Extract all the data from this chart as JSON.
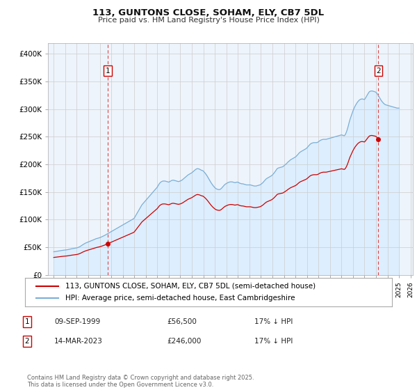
{
  "title": "113, GUNTONS CLOSE, SOHAM, ELY, CB7 5DL",
  "subtitle": "Price paid vs. HM Land Registry's House Price Index (HPI)",
  "legend_line1": "113, GUNTONS CLOSE, SOHAM, ELY, CB7 5DL (semi-detached house)",
  "legend_line2": "HPI: Average price, semi-detached house, East Cambridgeshire",
  "footer": "Contains HM Land Registry data © Crown copyright and database right 2025.\nThis data is licensed under the Open Government Licence v3.0.",
  "annotation1_label": "1",
  "annotation1_date": "09-SEP-1999",
  "annotation1_price": "£56,500",
  "annotation1_hpi": "17% ↓ HPI",
  "annotation2_label": "2",
  "annotation2_date": "14-MAR-2023",
  "annotation2_price": "£246,000",
  "annotation2_hpi": "17% ↓ HPI",
  "price_color": "#cc0000",
  "hpi_color": "#7aaed6",
  "hpi_fill_color": "#ddeeff",
  "vline_color": "#dd4444",
  "grid_color": "#cccccc",
  "background_color": "#ffffff",
  "chart_bg_color": "#eef4fb",
  "ylim_min": 0,
  "ylim_max": 420000,
  "ylabel_ticks": [
    0,
    50000,
    100000,
    150000,
    200000,
    250000,
    300000,
    350000,
    400000
  ],
  "ylabel_labels": [
    "£0",
    "£50K",
    "£100K",
    "£150K",
    "£200K",
    "£250K",
    "£300K",
    "£350K",
    "£400K"
  ],
  "hpi_data": {
    "dates": [
      1995.0,
      1995.083,
      1995.167,
      1995.25,
      1995.333,
      1995.417,
      1995.5,
      1995.583,
      1995.667,
      1995.75,
      1995.833,
      1995.917,
      1996.0,
      1996.083,
      1996.167,
      1996.25,
      1996.333,
      1996.417,
      1996.5,
      1996.583,
      1996.667,
      1996.75,
      1996.833,
      1996.917,
      1997.0,
      1997.083,
      1997.167,
      1997.25,
      1997.333,
      1997.417,
      1997.5,
      1997.583,
      1997.667,
      1997.75,
      1997.833,
      1997.917,
      1998.0,
      1998.083,
      1998.167,
      1998.25,
      1998.333,
      1998.417,
      1998.5,
      1998.583,
      1998.667,
      1998.75,
      1998.833,
      1998.917,
      1999.0,
      1999.083,
      1999.167,
      1999.25,
      1999.333,
      1999.417,
      1999.5,
      1999.583,
      1999.667,
      1999.75,
      1999.833,
      1999.917,
      2000.0,
      2000.083,
      2000.167,
      2000.25,
      2000.333,
      2000.417,
      2000.5,
      2000.583,
      2000.667,
      2000.75,
      2000.833,
      2000.917,
      2001.0,
      2001.083,
      2001.167,
      2001.25,
      2001.333,
      2001.417,
      2001.5,
      2001.583,
      2001.667,
      2001.75,
      2001.833,
      2001.917,
      2002.0,
      2002.083,
      2002.167,
      2002.25,
      2002.333,
      2002.417,
      2002.5,
      2002.583,
      2002.667,
      2002.75,
      2002.833,
      2002.917,
      2003.0,
      2003.083,
      2003.167,
      2003.25,
      2003.333,
      2003.417,
      2003.5,
      2003.583,
      2003.667,
      2003.75,
      2003.833,
      2003.917,
      2004.0,
      2004.083,
      2004.167,
      2004.25,
      2004.333,
      2004.417,
      2004.5,
      2004.583,
      2004.667,
      2004.75,
      2004.833,
      2004.917,
      2005.0,
      2005.083,
      2005.167,
      2005.25,
      2005.333,
      2005.417,
      2005.5,
      2005.583,
      2005.667,
      2005.75,
      2005.833,
      2005.917,
      2006.0,
      2006.083,
      2006.167,
      2006.25,
      2006.333,
      2006.417,
      2006.5,
      2006.583,
      2006.667,
      2006.75,
      2006.833,
      2006.917,
      2007.0,
      2007.083,
      2007.167,
      2007.25,
      2007.333,
      2007.417,
      2007.5,
      2007.583,
      2007.667,
      2007.75,
      2007.833,
      2007.917,
      2008.0,
      2008.083,
      2008.167,
      2008.25,
      2008.333,
      2008.417,
      2008.5,
      2008.583,
      2008.667,
      2008.75,
      2008.833,
      2008.917,
      2009.0,
      2009.083,
      2009.167,
      2009.25,
      2009.333,
      2009.417,
      2009.5,
      2009.583,
      2009.667,
      2009.75,
      2009.833,
      2009.917,
      2010.0,
      2010.083,
      2010.167,
      2010.25,
      2010.333,
      2010.417,
      2010.5,
      2010.583,
      2010.667,
      2010.75,
      2010.833,
      2010.917,
      2011.0,
      2011.083,
      2011.167,
      2011.25,
      2011.333,
      2011.417,
      2011.5,
      2011.583,
      2011.667,
      2011.75,
      2011.833,
      2011.917,
      2012.0,
      2012.083,
      2012.167,
      2012.25,
      2012.333,
      2012.417,
      2012.5,
      2012.583,
      2012.667,
      2012.75,
      2012.833,
      2012.917,
      2013.0,
      2013.083,
      2013.167,
      2013.25,
      2013.333,
      2013.417,
      2013.5,
      2013.583,
      2013.667,
      2013.75,
      2013.833,
      2013.917,
      2014.0,
      2014.083,
      2014.167,
      2014.25,
      2014.333,
      2014.417,
      2014.5,
      2014.583,
      2014.667,
      2014.75,
      2014.833,
      2014.917,
      2015.0,
      2015.083,
      2015.167,
      2015.25,
      2015.333,
      2015.417,
      2015.5,
      2015.583,
      2015.667,
      2015.75,
      2015.833,
      2015.917,
      2016.0,
      2016.083,
      2016.167,
      2016.25,
      2016.333,
      2016.417,
      2016.5,
      2016.583,
      2016.667,
      2016.75,
      2016.833,
      2016.917,
      2017.0,
      2017.083,
      2017.167,
      2017.25,
      2017.333,
      2017.417,
      2017.5,
      2017.583,
      2017.667,
      2017.75,
      2017.833,
      2017.917,
      2018.0,
      2018.083,
      2018.167,
      2018.25,
      2018.333,
      2018.417,
      2018.5,
      2018.583,
      2018.667,
      2018.75,
      2018.833,
      2018.917,
      2019.0,
      2019.083,
      2019.167,
      2019.25,
      2019.333,
      2019.417,
      2019.5,
      2019.583,
      2019.667,
      2019.75,
      2019.833,
      2019.917,
      2020.0,
      2020.083,
      2020.167,
      2020.25,
      2020.333,
      2020.417,
      2020.5,
      2020.583,
      2020.667,
      2020.75,
      2020.833,
      2020.917,
      2021.0,
      2021.083,
      2021.167,
      2021.25,
      2021.333,
      2021.417,
      2021.5,
      2021.583,
      2021.667,
      2021.75,
      2021.833,
      2021.917,
      2022.0,
      2022.083,
      2022.167,
      2022.25,
      2022.333,
      2022.417,
      2022.5,
      2022.583,
      2022.667,
      2022.75,
      2022.833,
      2022.917,
      2023.0,
      2023.083,
      2023.167,
      2023.25,
      2023.333,
      2023.417,
      2023.5,
      2023.583,
      2023.667,
      2023.75,
      2023.833,
      2023.917,
      2024.0,
      2024.083,
      2024.167,
      2024.25,
      2024.333,
      2024.417,
      2024.5,
      2024.583,
      2024.667,
      2024.75,
      2024.833,
      2024.917,
      2025.0
    ],
    "values": [
      42000,
      42200,
      42500,
      42800,
      43100,
      43400,
      43700,
      44000,
      44300,
      44500,
      44700,
      44900,
      45100,
      45300,
      45600,
      46000,
      46400,
      46800,
      47200,
      47500,
      47800,
      48100,
      48400,
      48700,
      49000,
      49500,
      50200,
      51000,
      52000,
      53200,
      54500,
      55500,
      56500,
      57500,
      58300,
      59000,
      59700,
      60300,
      61000,
      61700,
      62500,
      63200,
      64000,
      64700,
      65500,
      66000,
      66500,
      67000,
      67500,
      68200,
      69000,
      69800,
      70600,
      71500,
      72500,
      73500,
      74500,
      75500,
      76500,
      77500,
      78500,
      79500,
      80500,
      81500,
      82500,
      83500,
      84500,
      85500,
      86500,
      87500,
      88500,
      89500,
      90500,
      91500,
      92500,
      93500,
      94500,
      95500,
      96500,
      97500,
      98500,
      99500,
      100500,
      101500,
      103000,
      106000,
      109000,
      112000,
      115000,
      118000,
      121000,
      124000,
      127000,
      129000,
      131000,
      133000,
      135000,
      137000,
      139000,
      141000,
      143000,
      145000,
      147000,
      149000,
      151000,
      153000,
      155000,
      157000,
      159000,
      162000,
      165000,
      167000,
      168500,
      169500,
      170000,
      170000,
      170000,
      169500,
      169000,
      168500,
      168000,
      169000,
      170000,
      171000,
      171500,
      171500,
      171000,
      170500,
      170000,
      169500,
      169000,
      169500,
      170000,
      171000,
      172000,
      173500,
      175000,
      176500,
      178000,
      179500,
      181000,
      182000,
      183000,
      184000,
      185000,
      186500,
      188000,
      189500,
      191000,
      192000,
      192500,
      192000,
      191500,
      190500,
      189500,
      189000,
      188000,
      186000,
      184000,
      181500,
      179000,
      176000,
      173000,
      170000,
      167000,
      164500,
      162000,
      160000,
      158000,
      156500,
      155500,
      155000,
      154500,
      154500,
      155500,
      157000,
      159000,
      161000,
      163000,
      164500,
      165500,
      166500,
      167500,
      168000,
      168500,
      168500,
      168500,
      168000,
      167500,
      167000,
      167500,
      168000,
      168000,
      167000,
      166000,
      165500,
      165000,
      165000,
      164500,
      164000,
      163500,
      163000,
      163000,
      163000,
      163000,
      163000,
      162500,
      162000,
      161500,
      161000,
      161000,
      161000,
      161500,
      162000,
      162500,
      163000,
      164000,
      165500,
      167000,
      169000,
      171000,
      173000,
      174500,
      175500,
      176500,
      177500,
      178500,
      179500,
      181000,
      183000,
      185000,
      187500,
      190000,
      192500,
      193500,
      194000,
      194500,
      195000,
      195500,
      196000,
      197500,
      199000,
      200500,
      202000,
      204000,
      205500,
      207000,
      208500,
      209500,
      210500,
      211500,
      212500,
      213500,
      215000,
      217000,
      219000,
      221000,
      222500,
      223500,
      224500,
      225500,
      226500,
      227500,
      228500,
      230000,
      232000,
      234000,
      236000,
      237500,
      238500,
      239000,
      239500,
      239500,
      239500,
      239500,
      240000,
      241000,
      242500,
      243500,
      244500,
      245000,
      245500,
      245500,
      245500,
      245500,
      246000,
      246500,
      247000,
      247500,
      248000,
      248500,
      249000,
      249500,
      250000,
      250500,
      251000,
      251500,
      252000,
      252500,
      253000,
      253500,
      253000,
      252500,
      252000,
      254000,
      258000,
      263000,
      269000,
      276000,
      282000,
      287000,
      292000,
      297000,
      301000,
      305000,
      308000,
      311000,
      313500,
      315500,
      317000,
      318000,
      318500,
      318500,
      318000,
      317500,
      320000,
      323000,
      326000,
      329000,
      331500,
      332500,
      333000,
      333000,
      332500,
      332000,
      331500,
      330500,
      328500,
      326000,
      323000,
      320000,
      317000,
      314500,
      312500,
      310500,
      309000,
      308000,
      307500,
      307000,
      306500,
      306000,
      305500,
      305000,
      304500,
      304000,
      303500,
      303000,
      302500,
      302000,
      302000,
      302000
    ]
  },
  "sale_points": [
    {
      "date": 1999.69,
      "price": 56500,
      "label": "1"
    },
    {
      "date": 2023.21,
      "price": 246000,
      "label": "2"
    }
  ],
  "xlim_min": 1994.5,
  "xlim_max": 2026.2,
  "xticks": [
    1995,
    1996,
    1997,
    1998,
    1999,
    2000,
    2001,
    2002,
    2003,
    2004,
    2005,
    2006,
    2007,
    2008,
    2009,
    2010,
    2011,
    2012,
    2013,
    2014,
    2015,
    2016,
    2017,
    2018,
    2019,
    2020,
    2021,
    2022,
    2023,
    2024,
    2025,
    2026
  ]
}
